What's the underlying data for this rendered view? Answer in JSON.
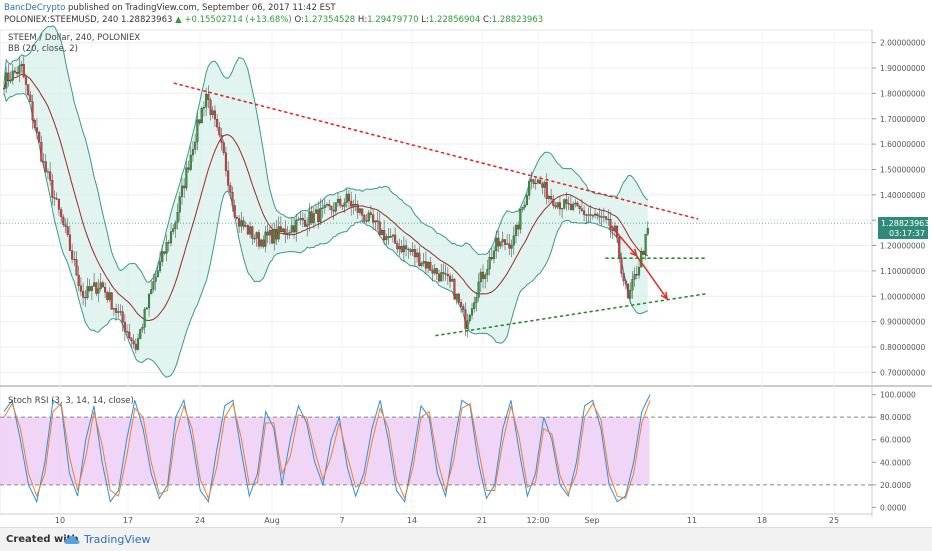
{
  "header": {
    "author": "BancDeCrypto",
    "published": "published on TradingView.com, September 06, 2017 11:42 EST",
    "symbol": "POLONIEX:STEEMUSD, 240",
    "price": "1.28823963",
    "change_arrow": "▲",
    "change": "+0.15502714 (+13.68%)",
    "ohlc": [
      {
        "k": "O:",
        "v": "1.27354528"
      },
      {
        "k": "H:",
        "v": "1.29479770"
      },
      {
        "k": "L:",
        "v": "1.22856904"
      },
      {
        "k": "C:",
        "v": "1.28823963"
      }
    ]
  },
  "legend": {
    "series_line": "STEEM / Dollar, 240, POLONIEX",
    "bb_line": "BB (20, close, 2)",
    "rsi_line": "Stoch RSI (3, 3, 14, 14, close)"
  },
  "price_tag": {
    "value": "1.28823963",
    "countdown": "03:17:37"
  },
  "footer": {
    "created": "Created with",
    "brand": "TradingView"
  },
  "colors": {
    "up": "#2e9d37",
    "down": "#e03b3b",
    "bb": "#3a9a8a",
    "bb_fill": "#d6f0ea",
    "mid": "#9b2a2a",
    "rsi_k": "#2d8fe0",
    "rsi_d": "#f08030",
    "rsi_band": "#eccbf5",
    "trend_red": "#e02a2a",
    "trend_green": "#2e8b2e",
    "price_tag": "#2f8a7a"
  },
  "chart_data": [
    {
      "type": "candlestick",
      "title": "STEEM / Dollar, 240, POLONIEX",
      "ylim": [
        0.65,
        2.05
      ],
      "y_ticks": [
        "2.00000000",
        "1.90000000",
        "1.80000000",
        "1.70000000",
        "1.60000000",
        "1.50000000",
        "1.40000000",
        "1.30000000",
        "1.20000000",
        "1.10000000",
        "1.00000000",
        "0.90000000",
        "0.80000000",
        "0.70000000"
      ],
      "x_ticks": [
        "10",
        "17",
        "24",
        "Aug",
        "7",
        "14",
        "21",
        "12:00",
        "Sep",
        "11",
        "18",
        "25"
      ],
      "price_path": [
        {
          "i": 0,
          "y": 1.85
        },
        {
          "i": 8,
          "y": 1.9
        },
        {
          "i": 18,
          "y": 1.52
        },
        {
          "i": 28,
          "y": 1.25
        },
        {
          "i": 36,
          "y": 1.0
        },
        {
          "i": 44,
          "y": 1.05
        },
        {
          "i": 52,
          "y": 0.93
        },
        {
          "i": 60,
          "y": 0.8
        },
        {
          "i": 68,
          "y": 1.05
        },
        {
          "i": 78,
          "y": 1.3
        },
        {
          "i": 86,
          "y": 1.6
        },
        {
          "i": 92,
          "y": 1.8
        },
        {
          "i": 100,
          "y": 1.55
        },
        {
          "i": 106,
          "y": 1.3
        },
        {
          "i": 116,
          "y": 1.22
        },
        {
          "i": 126,
          "y": 1.25
        },
        {
          "i": 136,
          "y": 1.3
        },
        {
          "i": 146,
          "y": 1.33
        },
        {
          "i": 156,
          "y": 1.38
        },
        {
          "i": 166,
          "y": 1.3
        },
        {
          "i": 176,
          "y": 1.22
        },
        {
          "i": 186,
          "y": 1.17
        },
        {
          "i": 196,
          "y": 1.1
        },
        {
          "i": 204,
          "y": 1.04
        },
        {
          "i": 210,
          "y": 0.9
        },
        {
          "i": 216,
          "y": 1.05
        },
        {
          "i": 224,
          "y": 1.2
        },
        {
          "i": 232,
          "y": 1.22
        },
        {
          "i": 240,
          "y": 1.48
        },
        {
          "i": 248,
          "y": 1.4
        },
        {
          "i": 256,
          "y": 1.35
        },
        {
          "i": 264,
          "y": 1.33
        },
        {
          "i": 272,
          "y": 1.3
        },
        {
          "i": 278,
          "y": 1.25
        },
        {
          "i": 284,
          "y": 0.98
        },
        {
          "i": 288,
          "y": 1.1
        },
        {
          "i": 294,
          "y": 1.28
        }
      ],
      "trendlines": [
        {
          "name": "upper-resistance",
          "color": "red",
          "from": [
            0.2,
            1.84
          ],
          "to": [
            0.8,
            1.305
          ]
        },
        {
          "name": "lower-support",
          "color": "green",
          "from": [
            0.5,
            0.845
          ],
          "to": [
            0.81,
            1.01
          ]
        },
        {
          "name": "horizontal-support",
          "color": "green",
          "from": [
            0.695,
            1.15
          ],
          "to": [
            0.81,
            1.15
          ]
        }
      ],
      "arrows": [
        {
          "from": [
            0.7,
            1.28
          ],
          "to": [
            0.73,
            1.16
          ]
        },
        {
          "from": [
            0.73,
            1.16
          ],
          "to": [
            0.765,
            0.99
          ]
        }
      ],
      "last_price": 1.28823963
    },
    {
      "type": "line",
      "title": "Stoch RSI (3, 3, 14, 14, close)",
      "ylim": [
        -5,
        105
      ],
      "y_ticks": [
        "100.0000",
        "80.0000",
        "60.0000",
        "40.0000",
        "20.0000",
        "0.0000"
      ],
      "bands": [
        20,
        80
      ],
      "series": [
        {
          "values": [
            85,
            95,
            60,
            20,
            5,
            40,
            95,
            90,
            30,
            10,
            60,
            90,
            40,
            5,
            15,
            60,
            95,
            70,
            30,
            8,
            20,
            80,
            95,
            60,
            15,
            5,
            50,
            90,
            95,
            50,
            10,
            30,
            85,
            70,
            20,
            60,
            90,
            75,
            40,
            20,
            60,
            80,
            35,
            10,
            30,
            70,
            95,
            60,
            15,
            5,
            45,
            90,
            80,
            30,
            10,
            55,
            95,
            90,
            40,
            8,
            20,
            70,
            95,
            50,
            10,
            30,
            80,
            60,
            20,
            10,
            40,
            90,
            95,
            70,
            20,
            5,
            10,
            40,
            85,
            100
          ]
        },
        {
          "values": [
            80,
            92,
            70,
            30,
            10,
            30,
            85,
            92,
            45,
            15,
            45,
            85,
            55,
            15,
            10,
            45,
            88,
            80,
            40,
            12,
            15,
            65,
            90,
            70,
            25,
            8,
            35,
            80,
            92,
            62,
            20,
            22,
            75,
            75,
            30,
            45,
            82,
            80,
            50,
            25,
            45,
            75,
            45,
            18,
            22,
            58,
            88,
            70,
            25,
            8,
            35,
            80,
            85,
            42,
            15,
            42,
            88,
            92,
            52,
            15,
            15,
            58,
            90,
            62,
            18,
            22,
            70,
            65,
            28,
            12,
            30,
            80,
            92,
            78,
            30,
            10,
            8,
            30,
            75,
            95
          ]
        }
      ]
    }
  ]
}
